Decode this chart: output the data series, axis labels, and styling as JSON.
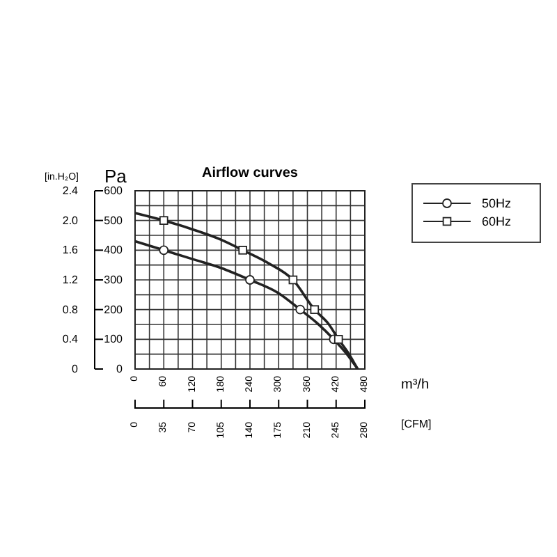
{
  "chart_data": {
    "type": "line",
    "title": "Airflow curves",
    "xlabel": "m³/h",
    "ylabel": "Pa",
    "y2label": "[in.H₂O]",
    "x2label": "[CFM]",
    "xlim": [
      0,
      480
    ],
    "xticks": [
      0,
      60,
      120,
      180,
      240,
      300,
      360,
      420,
      480
    ],
    "ylim": [
      0,
      600
    ],
    "yticks": [
      0,
      100,
      200,
      300,
      400,
      500,
      600
    ],
    "y2lim": [
      0,
      2.4
    ],
    "y2ticks": [
      0,
      0.4,
      0.8,
      1.2,
      1.6,
      {
        "value": 2,
        "label": "2.0"
      },
      2.4
    ],
    "x2lim": [
      0,
      280
    ],
    "x2ticks": [
      0,
      35,
      70,
      105,
      140,
      175,
      210,
      245,
      280
    ],
    "grid": true,
    "legend": "right",
    "line_style": "solid",
    "series": [
      {
        "name": "50Hz",
        "color": "#222222",
        "type": "line",
        "marker": "none",
        "x": [
          0,
          60,
          120,
          180,
          240,
          300,
          345,
          380,
          415,
          445,
          465
        ],
        "values": [
          430,
          400,
          370,
          340,
          300,
          255,
          200,
          155,
          100,
          45,
          0
        ]
      },
      {
        "name": "60Hz",
        "color": "#222222",
        "type": "line",
        "marker": "none",
        "x": [
          0,
          60,
          120,
          180,
          225,
          280,
          330,
          375,
          405,
          425,
          445,
          465
        ],
        "values": [
          525,
          500,
          470,
          435,
          400,
          355,
          300,
          200,
          150,
          100,
          55,
          0
        ]
      },
      {
        "color": "#222222",
        "type": "scatter",
        "marker": "circle",
        "x": [
          60,
          240,
          345,
          415
        ],
        "values": [
          400,
          300,
          200,
          100
        ]
      },
      {
        "color": "#222222",
        "type": "scatter",
        "marker": "square",
        "x": [
          60,
          225,
          330,
          375,
          425
        ],
        "values": [
          500,
          400,
          300,
          200,
          100
        ]
      }
    ]
  }
}
